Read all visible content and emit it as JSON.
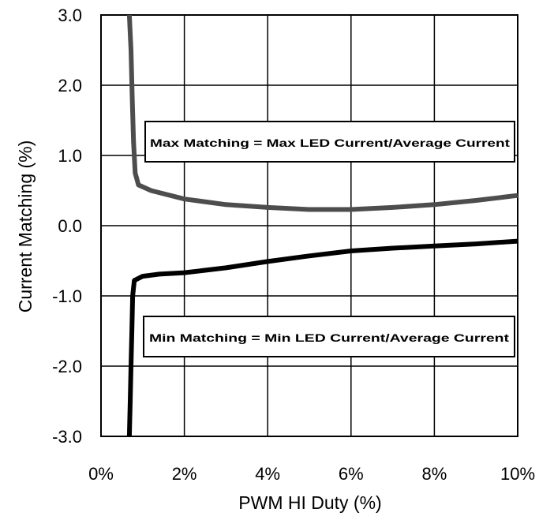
{
  "chart_data": {
    "type": "line",
    "xlabel": "PWM HI Duty (%)",
    "ylabel": "Current Matching (%)",
    "xlim": [
      0,
      10
    ],
    "ylim": [
      -3.0,
      3.0
    ],
    "grid": true,
    "x_ticks": [
      {
        "value": 0,
        "label": "0%"
      },
      {
        "value": 2,
        "label": "2%"
      },
      {
        "value": 4,
        "label": "4%"
      },
      {
        "value": 6,
        "label": "6%"
      },
      {
        "value": 8,
        "label": "8%"
      },
      {
        "value": 10,
        "label": "10%"
      }
    ],
    "y_ticks": [
      {
        "value": 3,
        "label": "3.0"
      },
      {
        "value": 2,
        "label": "2.0"
      },
      {
        "value": 1,
        "label": "1.0"
      },
      {
        "value": 0,
        "label": "0.0"
      },
      {
        "value": -1,
        "label": "-1.0"
      },
      {
        "value": -2,
        "label": "-2.0"
      },
      {
        "value": -3,
        "label": "-3.0"
      }
    ],
    "series": [
      {
        "color": "#4d4d4d",
        "points": [
          [
            0.68,
            3.0
          ],
          [
            0.72,
            2.5
          ],
          [
            0.75,
            1.8
          ],
          [
            0.78,
            1.2
          ],
          [
            0.82,
            0.75
          ],
          [
            0.9,
            0.58
          ],
          [
            1.2,
            0.5
          ],
          [
            2.0,
            0.38
          ],
          [
            3.0,
            0.3
          ],
          [
            4.0,
            0.26
          ],
          [
            5.0,
            0.23
          ],
          [
            6.0,
            0.23
          ],
          [
            7.0,
            0.26
          ],
          [
            8.0,
            0.3
          ],
          [
            9.0,
            0.36
          ],
          [
            10.0,
            0.43
          ]
        ]
      },
      {
        "color": "#000000",
        "points": [
          [
            0.68,
            -3.0
          ],
          [
            0.7,
            -2.5
          ],
          [
            0.72,
            -2.0
          ],
          [
            0.74,
            -1.5
          ],
          [
            0.76,
            -1.0
          ],
          [
            0.8,
            -0.78
          ],
          [
            1.0,
            -0.72
          ],
          [
            1.4,
            -0.69
          ],
          [
            2.0,
            -0.67
          ],
          [
            3.0,
            -0.6
          ],
          [
            4.0,
            -0.51
          ],
          [
            5.0,
            -0.43
          ],
          [
            6.0,
            -0.36
          ],
          [
            7.0,
            -0.32
          ],
          [
            8.0,
            -0.29
          ],
          [
            9.0,
            -0.26
          ],
          [
            10.0,
            -0.22
          ]
        ]
      }
    ],
    "annotations": [
      {
        "id": "max",
        "text": "Max Matching = Max LED Current/Average Current"
      },
      {
        "id": "min",
        "text": "Min Matching = Min LED Current/Average Current"
      }
    ]
  }
}
